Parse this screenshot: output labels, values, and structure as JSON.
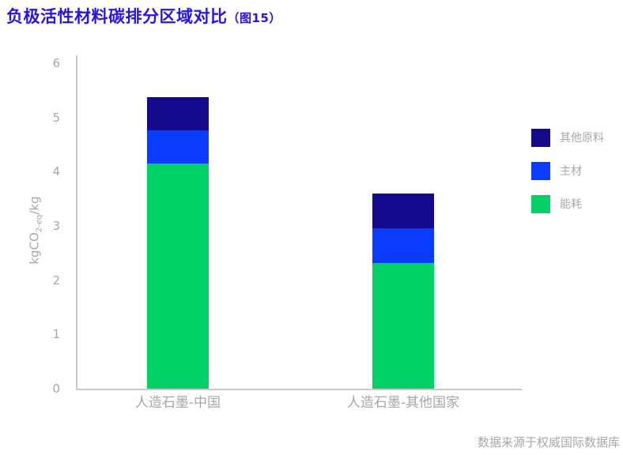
{
  "title": {
    "text": "负极活性材料碳排分区域对比",
    "figure_ref": "（图15）"
  },
  "source_note": "数据来源于权威国际数据库",
  "colors": {
    "title_accent": "#2713e3",
    "other_materials": "#150a8c",
    "main_materials": "#0a3cfe",
    "energy": "#02d167",
    "axis_line": "#c8c8c8",
    "muted_text": "#a7a7a7"
  },
  "legend": [
    {
      "label": "其他原料",
      "color": "#150a8c"
    },
    {
      "label": "主材",
      "color": "#0a3cfe"
    },
    {
      "label": "能耗",
      "color": "#02d167"
    }
  ],
  "chart_data": {
    "type": "bar",
    "stacked": true,
    "title": "负极活性材料碳排分区域对比（图15）",
    "categories": [
      "人造石墨-中国",
      "人造石墨-其他国家"
    ],
    "series": [
      {
        "name": "能耗",
        "color": "#02d167",
        "values": [
          4.15,
          2.32
        ]
      },
      {
        "name": "主材",
        "color": "#0a3cfe",
        "values": [
          0.61,
          0.63
        ]
      },
      {
        "name": "其他原料",
        "color": "#150a8c",
        "values": [
          0.62,
          0.65
        ]
      }
    ],
    "totals": [
      5.38,
      3.6
    ],
    "xlabel": "",
    "ylabel": "kgCO2-eq/kg",
    "ylabel_parts": {
      "prefix": "kgCO",
      "subscript": "2-eq",
      "suffix": "/kg"
    },
    "yticks": [
      0,
      1,
      2,
      3,
      4,
      5,
      6
    ],
    "ylim": [
      0,
      6
    ],
    "grid": false,
    "legend_position": "right"
  }
}
